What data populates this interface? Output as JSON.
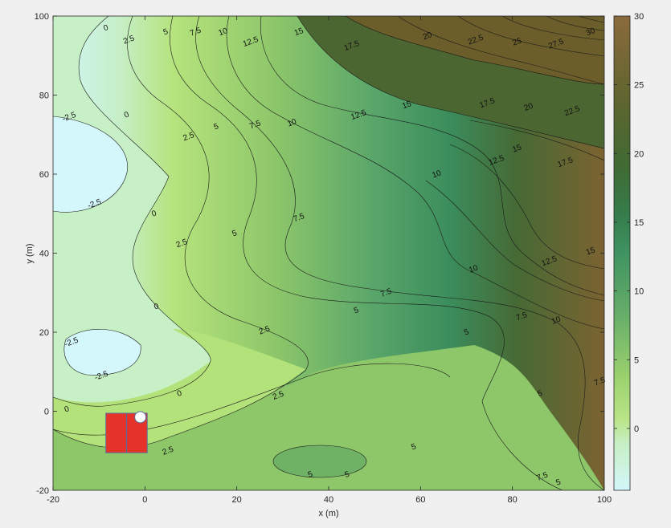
{
  "chart_data": {
    "type": "contour",
    "xlabel": "x (m)",
    "ylabel": "y (m)",
    "xlim": [
      -20,
      100
    ],
    "ylim": [
      -20,
      100
    ],
    "x_ticks": [
      "-20",
      "0",
      "20",
      "40",
      "60",
      "80",
      "100"
    ],
    "y_ticks": [
      "-20",
      "0",
      "20",
      "40",
      "60",
      "80",
      "100"
    ],
    "colorbar": {
      "range": [
        -4.5,
        30
      ],
      "ticks": [
        "0",
        "5",
        "10",
        "15",
        "20",
        "25",
        "30"
      ],
      "colormap": "land elevation (light cyan - green - brown)"
    },
    "contour_levels": [
      -2.5,
      0,
      2.5,
      5,
      7.5,
      10,
      12.5,
      15,
      17.5,
      20,
      22.5,
      25,
      27.5,
      30
    ],
    "contour_labels": [
      {
        "text": "0",
        "x": -8.5,
        "y": 97
      },
      {
        "text": "2.5",
        "x": -3.5,
        "y": 94
      },
      {
        "text": "5",
        "x": 4.5,
        "y": 96
      },
      {
        "text": "7.5",
        "x": 11,
        "y": 96
      },
      {
        "text": "10",
        "x": 17,
        "y": 96
      },
      {
        "text": "12.5",
        "x": 23,
        "y": 93.5
      },
      {
        "text": "15",
        "x": 33.5,
        "y": 96
      },
      {
        "text": "17.5",
        "x": 45,
        "y": 92.5
      },
      {
        "text": "20",
        "x": 61.5,
        "y": 95
      },
      {
        "text": "22.5",
        "x": 72,
        "y": 94
      },
      {
        "text": "25",
        "x": 81,
        "y": 93.5
      },
      {
        "text": "27.5",
        "x": 89.5,
        "y": 93
      },
      {
        "text": "30",
        "x": 97,
        "y": 96
      },
      {
        "text": "-2.5",
        "x": -16.5,
        "y": 74.5
      },
      {
        "text": "0",
        "x": -4,
        "y": 75
      },
      {
        "text": "2.5",
        "x": 9.5,
        "y": 69.5
      },
      {
        "text": "5",
        "x": 15.5,
        "y": 72
      },
      {
        "text": "7.5",
        "x": 24,
        "y": 72.5
      },
      {
        "text": "10",
        "x": 32,
        "y": 73
      },
      {
        "text": "12.5",
        "x": 46.5,
        "y": 75
      },
      {
        "text": "15",
        "x": 57,
        "y": 77.5
      },
      {
        "text": "17.5",
        "x": 74.5,
        "y": 78
      },
      {
        "text": "20",
        "x": 83.5,
        "y": 77
      },
      {
        "text": "22.5",
        "x": 93,
        "y": 76
      },
      {
        "text": "15",
        "x": 81,
        "y": 66.5
      },
      {
        "text": "17.5",
        "x": 91.5,
        "y": 63
      },
      {
        "text": "12.5",
        "x": 76.5,
        "y": 63.5
      },
      {
        "text": "10",
        "x": 63.5,
        "y": 60
      },
      {
        "text": "-2.5",
        "x": -11,
        "y": 52.5
      },
      {
        "text": "0",
        "x": 2,
        "y": 50
      },
      {
        "text": "2.5",
        "x": 8,
        "y": 42.5
      },
      {
        "text": "5",
        "x": 19.5,
        "y": 45
      },
      {
        "text": "7.5",
        "x": 33.5,
        "y": 49
      },
      {
        "text": "12.5",
        "x": 88,
        "y": 38
      },
      {
        "text": "15",
        "x": 97,
        "y": 40.5
      },
      {
        "text": "10",
        "x": 71.5,
        "y": 36
      },
      {
        "text": "7.5",
        "x": 52.5,
        "y": 30
      },
      {
        "text": "0",
        "x": 2.5,
        "y": 26.5
      },
      {
        "text": "5",
        "x": 46,
        "y": 25.5
      },
      {
        "text": "7.5",
        "x": 82,
        "y": 24
      },
      {
        "text": "10",
        "x": 89.5,
        "y": 23
      },
      {
        "text": "2.5",
        "x": 26,
        "y": 20.5
      },
      {
        "text": "5",
        "x": 70,
        "y": 20
      },
      {
        "text": "-2.5",
        "x": -16,
        "y": 17.5
      },
      {
        "text": "-2.5",
        "x": -9.5,
        "y": 9
      },
      {
        "text": "0",
        "x": 7.5,
        "y": 4.5
      },
      {
        "text": "2.5",
        "x": 29,
        "y": 4
      },
      {
        "text": "7.5",
        "x": 99,
        "y": 7.5
      },
      {
        "text": "5",
        "x": 86,
        "y": 4.5
      },
      {
        "text": "0",
        "x": -17,
        "y": 0.5
      },
      {
        "text": "2.5",
        "x": 5,
        "y": -10
      },
      {
        "text": "5",
        "x": 58.5,
        "y": -9
      },
      {
        "text": "5",
        "x": 44,
        "y": -16
      },
      {
        "text": "5",
        "x": 36,
        "y": -16
      },
      {
        "text": "7.5",
        "x": 86.5,
        "y": -16.5
      },
      {
        "text": "5",
        "x": 90,
        "y": -18
      }
    ],
    "markers": [
      {
        "type": "rectangle",
        "color": "#e6332a",
        "x_range": [
          -8.5,
          0.5
        ],
        "y_range": [
          -10.5,
          -0.5
        ],
        "divider_x": -4
      },
      {
        "type": "circle",
        "color": "#ffffff",
        "x": -1,
        "y": -1.5
      }
    ]
  }
}
